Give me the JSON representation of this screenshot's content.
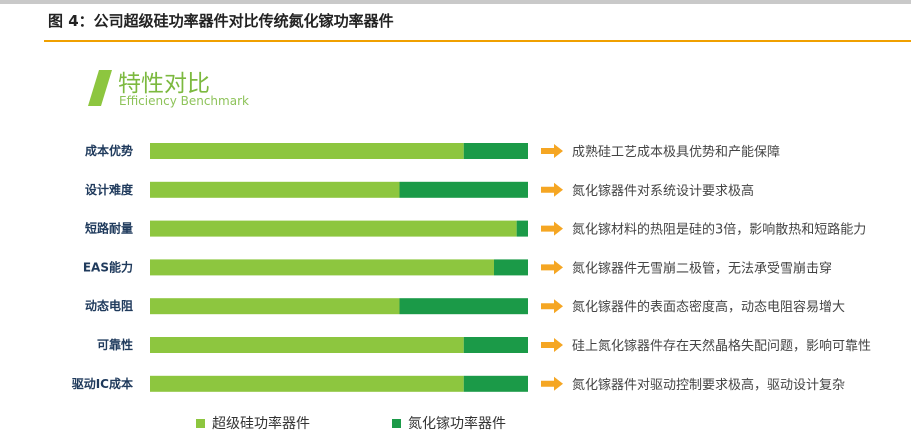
{
  "figure_title": "图 4：公司超级硅功率器件对比传统氮化镓功率器件",
  "heading": "特性对比",
  "subheading": "Efficiency Benchmark",
  "colors": {
    "series_1": "#8dc63f",
    "series_2": "#1b9a48",
    "arrow": "#f5a623",
    "accent_rule": "#f0a000",
    "heading": "#7cb93f"
  },
  "chart_data": {
    "type": "bar",
    "orientation": "horizontal",
    "stacked": true,
    "title": "特性对比",
    "subtitle": "Efficiency Benchmark",
    "xlim": [
      0,
      100
    ],
    "grid": false,
    "legend_position": "bottom",
    "categories": [
      "成本优势",
      "设计难度",
      "短路耐量",
      "EAS能力",
      "动态电阻",
      "可靠性",
      "驱动IC成本"
    ],
    "series": [
      {
        "name": "超级硅功率器件",
        "values": [
          83,
          66,
          97,
          91,
          66,
          83,
          83
        ]
      },
      {
        "name": "氮化镓功率器件",
        "values": [
          17,
          34,
          3,
          9,
          34,
          17,
          17
        ]
      }
    ],
    "annotations": [
      "成熟硅工艺成本极具优势和产能保障",
      "氮化镓器件对系统设计要求极高",
      "氮化镓材料的热阻是硅的3倍，影响散热和短路能力",
      "氮化镓器件无雪崩二极管，无法承受雪崩击穿",
      "氮化镓器件的表面态密度高，动态电阻容易增大",
      "硅上氮化镓器件存在天然晶格失配问题，影响可靠性",
      "氮化镓器件对驱动控制要求极高，驱动设计复杂"
    ]
  }
}
